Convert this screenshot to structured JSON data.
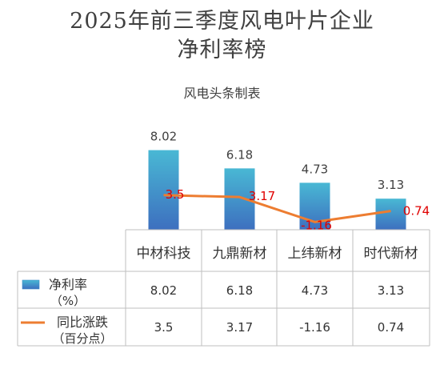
{
  "title_line1": "2025年前三季度风电叶片企业",
  "title_line2": "净利率榜",
  "subtitle": "风电头条制表",
  "chart_data": {
    "type": "bar",
    "categories": [
      "中材科技",
      "九鼎新材",
      "上纬新材",
      "时代新材"
    ],
    "series": [
      {
        "name": "净利率",
        "unit": "（%）",
        "type": "bar",
        "values": [
          8.02,
          6.18,
          4.73,
          3.13
        ],
        "labels": [
          "8.02",
          "6.18",
          "4.73",
          "3.13"
        ],
        "table_values": [
          "8.02",
          "6.18",
          "4.73",
          "3.13"
        ]
      },
      {
        "name": "同比涨跌",
        "unit": "（百分点）",
        "type": "line",
        "values": [
          3.5,
          3.17,
          -1.16,
          0.74
        ],
        "labels": [
          "3.5",
          "3.17",
          "-1.16",
          "0.74"
        ],
        "table_values": [
          "3.5",
          "3.17",
          "-1.16",
          "0.74"
        ]
      }
    ],
    "colors": {
      "bar_top": "#49b8d4",
      "bar_bottom": "#3d6fbf",
      "line": "#ed7d31",
      "line_label": "#e00000",
      "grid": "#bfbfbf"
    },
    "legend_placement": "table-left"
  }
}
